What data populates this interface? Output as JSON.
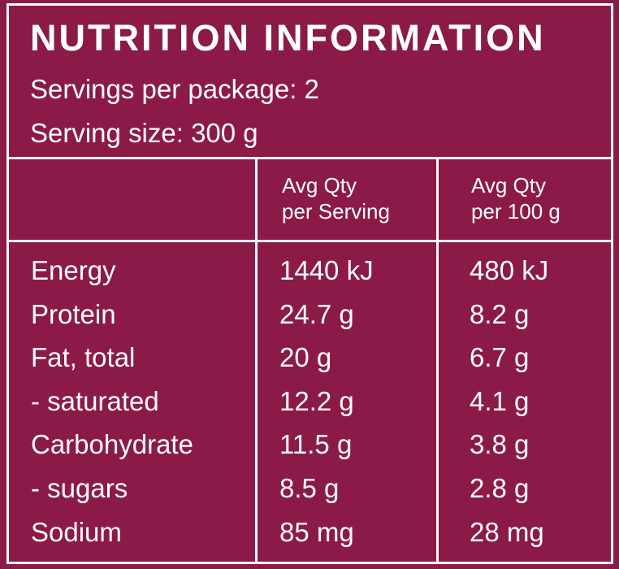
{
  "panel": {
    "title": "NUTRITION INFORMATION",
    "servings_per_package": "Servings per package: 2",
    "serving_size": "Serving size: 300 g"
  },
  "columns": {
    "per_serving": [
      "Avg Qty",
      "per Serving"
    ],
    "per_100g": [
      "Avg Qty",
      "per 100 g"
    ]
  },
  "rows": [
    {
      "name": "Energy",
      "per_serving": "1440 kJ",
      "per_100g": "480 kJ"
    },
    {
      "name": "Protein",
      "per_serving": "24.7 g",
      "per_100g": "8.2 g"
    },
    {
      "name": "Fat, total",
      "per_serving": "20 g",
      "per_100g": "6.7 g"
    },
    {
      "name": "- saturated",
      "per_serving": "12.2 g",
      "per_100g": "4.1 g"
    },
    {
      "name": "Carbohydrate",
      "per_serving": "11.5 g",
      "per_100g": "3.8 g"
    },
    {
      "name": "- sugars",
      "per_serving": "8.5 g",
      "per_100g": "2.8 g"
    },
    {
      "name": "Sodium",
      "per_serving": "85 mg",
      "per_100g": "28 mg"
    }
  ],
  "colors": {
    "background": "#8c1a48",
    "text": "#ffffff"
  }
}
